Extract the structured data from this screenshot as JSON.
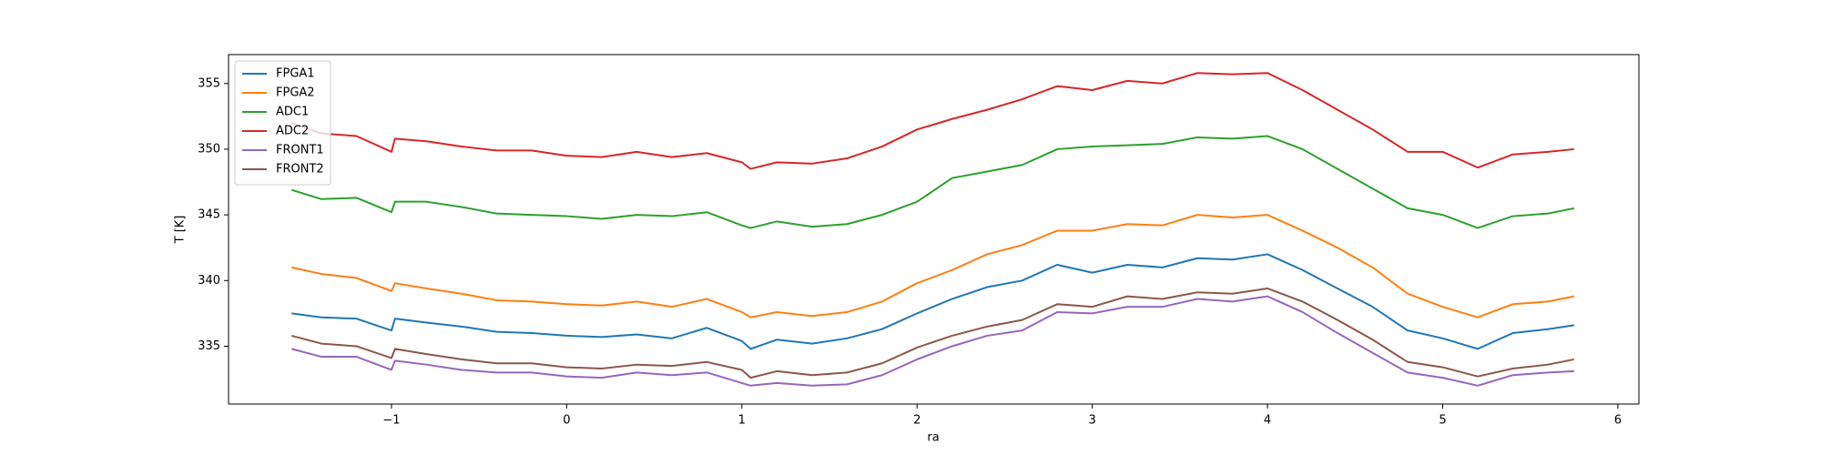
{
  "chart_data": {
    "type": "line",
    "xlabel": "ra",
    "ylabel": "T [K]",
    "x": [
      -1.57,
      -1.4,
      -1.2,
      -1.0,
      -0.98,
      -0.8,
      -0.6,
      -0.4,
      -0.2,
      0,
      0.2,
      0.4,
      0.6,
      0.8,
      1.0,
      1.05,
      1.2,
      1.4,
      1.6,
      1.8,
      2.0,
      2.2,
      2.4,
      2.6,
      2.8,
      3.0,
      3.2,
      3.4,
      3.6,
      3.8,
      4.0,
      4.2,
      4.4,
      4.6,
      4.8,
      5.0,
      5.2,
      5.4,
      5.6,
      5.75
    ],
    "series": [
      {
        "name": "FPGA1",
        "color": "#1f77b4",
        "values": [
          337.5,
          337.2,
          337.1,
          336.2,
          337.1,
          336.8,
          336.5,
          336.1,
          336.0,
          335.8,
          335.7,
          335.9,
          335.6,
          336.4,
          335.4,
          334.8,
          335.5,
          335.2,
          335.6,
          336.3,
          337.5,
          338.6,
          339.5,
          340.0,
          341.2,
          340.6,
          341.2,
          341.0,
          341.7,
          341.6,
          342.0,
          340.8,
          339.4,
          338.0,
          336.2,
          335.6,
          334.8,
          336.0,
          336.3,
          336.6
        ]
      },
      {
        "name": "FPGA2",
        "color": "#ff7f0e",
        "values": [
          341.0,
          340.5,
          340.2,
          339.2,
          339.8,
          339.4,
          339.0,
          338.5,
          338.4,
          338.2,
          338.1,
          338.4,
          338.0,
          338.6,
          337.6,
          337.2,
          337.6,
          337.3,
          337.6,
          338.4,
          339.8,
          340.8,
          342.0,
          342.7,
          343.8,
          343.8,
          344.3,
          344.2,
          345.0,
          344.8,
          345.0,
          343.8,
          342.5,
          341.0,
          339.0,
          338.0,
          337.2,
          338.2,
          338.4,
          338.8
        ]
      },
      {
        "name": "ADC1",
        "color": "#2ca02c",
        "values": [
          346.9,
          346.2,
          346.3,
          345.2,
          346.0,
          346.0,
          345.6,
          345.1,
          345.0,
          344.9,
          344.7,
          345.0,
          344.9,
          345.2,
          344.2,
          344.0,
          344.5,
          344.1,
          344.3,
          345.0,
          346.0,
          347.8,
          348.3,
          348.8,
          350.0,
          350.2,
          350.3,
          350.4,
          350.9,
          350.8,
          351.0,
          350.0,
          348.5,
          347.0,
          345.5,
          345.0,
          344.0,
          344.9,
          345.1,
          345.5
        ]
      },
      {
        "name": "ADC2",
        "color": "#d62728",
        "values": [
          352.0,
          351.2,
          351.0,
          349.8,
          350.8,
          350.6,
          350.2,
          349.9,
          349.9,
          349.5,
          349.4,
          349.8,
          349.4,
          349.7,
          349.0,
          348.5,
          349.0,
          348.9,
          349.3,
          350.2,
          351.5,
          352.3,
          353.0,
          353.8,
          354.8,
          354.5,
          355.2,
          355.0,
          355.8,
          355.7,
          355.8,
          354.5,
          353.0,
          351.5,
          349.8,
          349.8,
          348.6,
          349.6,
          349.8,
          350.0
        ]
      },
      {
        "name": "FRONT1",
        "color": "#9467bd",
        "values": [
          334.8,
          334.2,
          334.2,
          333.2,
          333.9,
          333.6,
          333.2,
          333.0,
          333.0,
          332.7,
          332.6,
          333.0,
          332.8,
          333.0,
          332.2,
          332.0,
          332.2,
          332.0,
          332.1,
          332.8,
          334.0,
          335.0,
          335.8,
          336.2,
          337.6,
          337.5,
          338.0,
          338.0,
          338.6,
          338.4,
          338.8,
          337.6,
          336.0,
          334.5,
          333.0,
          332.6,
          332.0,
          332.8,
          333.0,
          333.1
        ]
      },
      {
        "name": "FRONT2",
        "color": "#8c564b",
        "values": [
          335.8,
          335.2,
          335.0,
          334.1,
          334.8,
          334.4,
          334.0,
          333.7,
          333.7,
          333.4,
          333.3,
          333.6,
          333.5,
          333.8,
          333.2,
          332.6,
          333.1,
          332.8,
          333.0,
          333.7,
          334.9,
          335.8,
          336.5,
          337.0,
          338.2,
          338.0,
          338.8,
          338.6,
          339.1,
          339.0,
          339.4,
          338.4,
          337.0,
          335.5,
          333.8,
          333.4,
          332.7,
          333.3,
          333.6,
          334.0
        ]
      }
    ],
    "xlim": [
      -1.93,
      6.12
    ],
    "ylim": [
      330.6,
      357.2
    ],
    "xticks": [
      {
        "value": -1,
        "label": "−1"
      },
      0,
      1,
      2,
      3,
      4,
      5,
      6
    ],
    "yticks": [
      335,
      340,
      345,
      350,
      355
    ],
    "legend": "upper left"
  }
}
